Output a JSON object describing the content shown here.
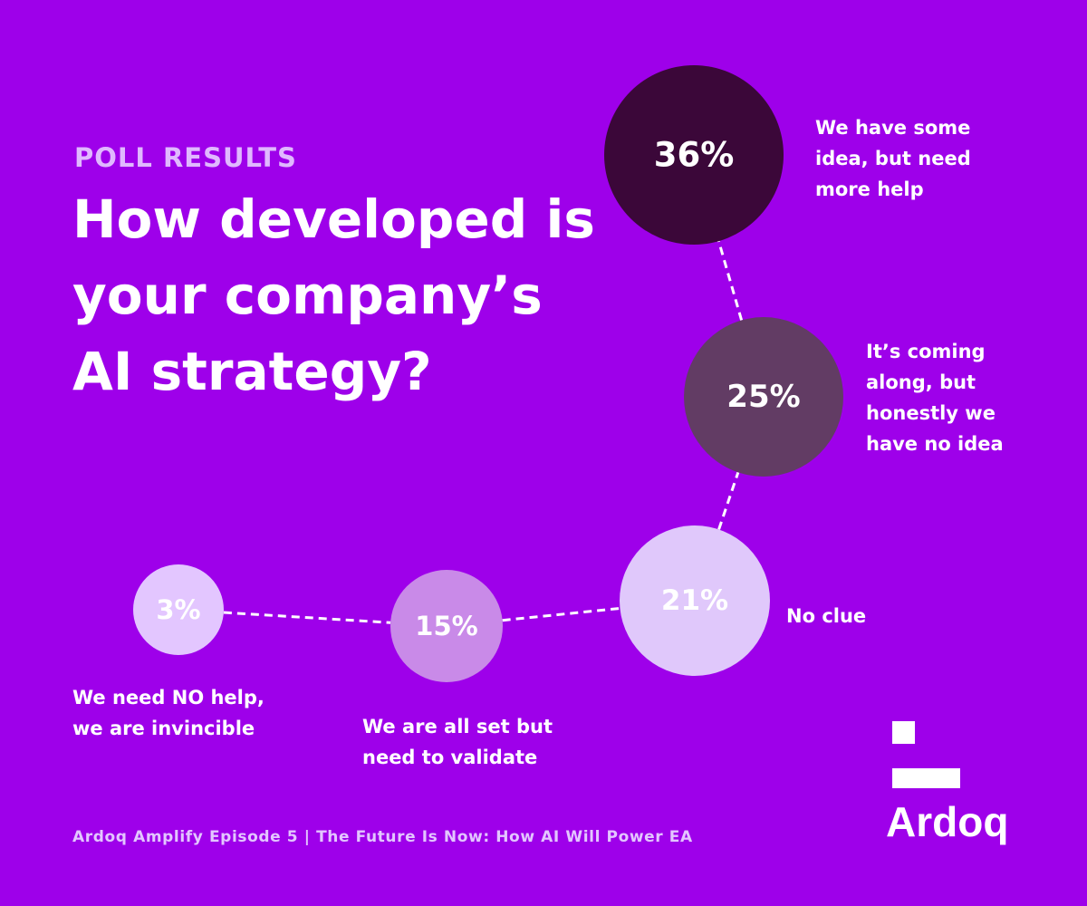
{
  "header": {
    "eyebrow": "POLL RESULTS",
    "question": "How developed is your company’s AI strategy?"
  },
  "chart_data": {
    "type": "bubble",
    "unit": "%",
    "points": [
      {
        "value": 3,
        "label": "3%",
        "answer": "We need NO help, we are invincible",
        "color": "#e3c6ff"
      },
      {
        "value": 15,
        "label": "15%",
        "answer": "We are all set but need to validate",
        "color": "#c98ae8"
      },
      {
        "value": 21,
        "label": "21%",
        "answer": "No clue",
        "color": "#e0c8fb"
      },
      {
        "value": 25,
        "label": "25%",
        "answer": "It’s coming along, but honestly we have no idea",
        "color": "#623c64"
      },
      {
        "value": 36,
        "label": "36%",
        "answer": "We have some idea, but need more help",
        "color": "#3b0739"
      }
    ],
    "connector": "dashed"
  },
  "footer": {
    "text": "Ardoq Amplify Episode 5 | The Future Is Now: How AI Will Power EA"
  },
  "brand": {
    "name": "Ardoq",
    "background": "#9e00ea"
  }
}
